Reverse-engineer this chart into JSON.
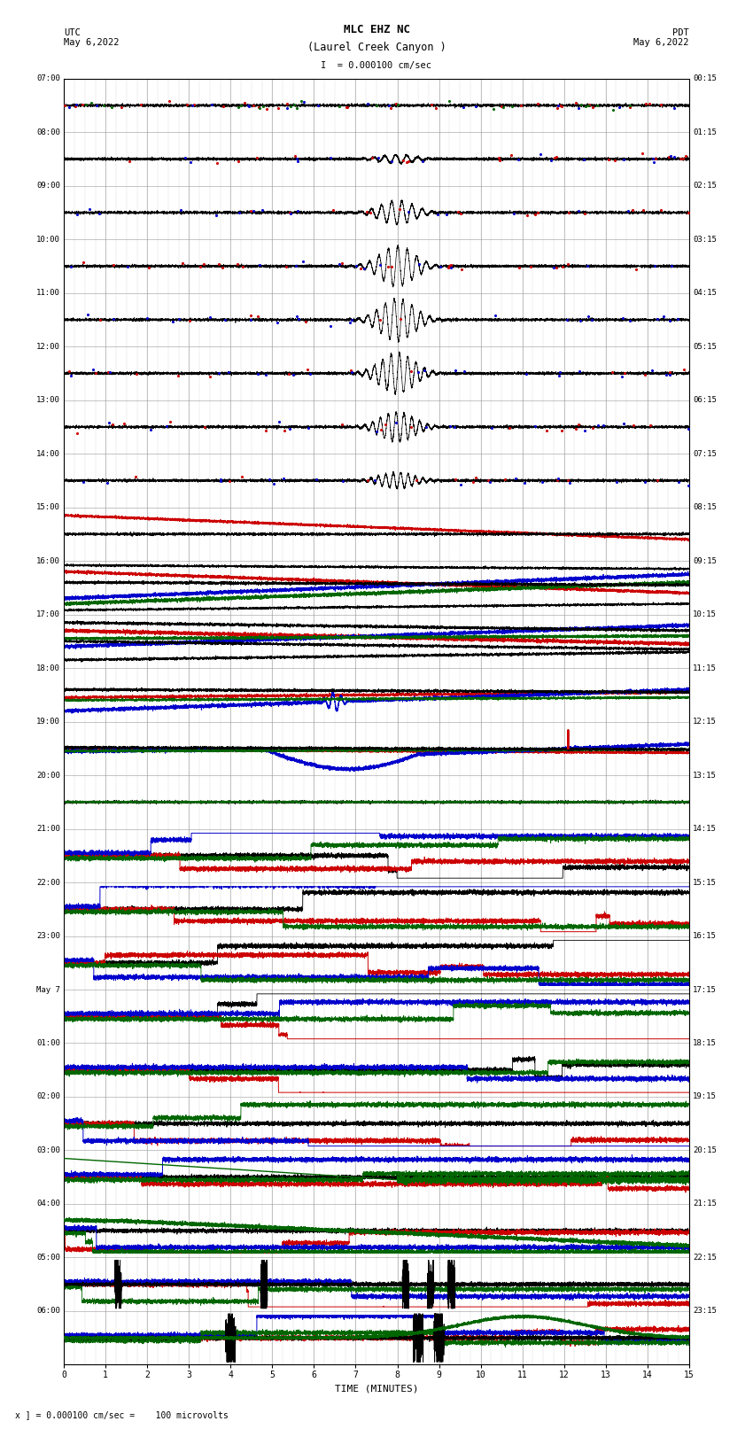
{
  "title_line1": "MLC EHZ NC",
  "title_line2": "(Laurel Creek Canyon )",
  "title_line3": "I  = 0.000100 cm/sec",
  "left_header_line1": "UTC",
  "left_header_line2": "May 6,2022",
  "right_header_line1": "PDT",
  "right_header_line2": "May 6,2022",
  "footer": "x ] = 0.000100 cm/sec =    100 microvolts",
  "xlabel": "TIME (MINUTES)",
  "utc_labels": [
    "07:00",
    "08:00",
    "09:00",
    "10:00",
    "11:00",
    "12:00",
    "13:00",
    "14:00",
    "15:00",
    "16:00",
    "17:00",
    "18:00",
    "19:00",
    "20:00",
    "21:00",
    "22:00",
    "23:00",
    "May 7",
    "01:00",
    "02:00",
    "03:00",
    "04:00",
    "05:00",
    "06:00"
  ],
  "pdt_labels": [
    "00:15",
    "01:15",
    "02:15",
    "03:15",
    "04:15",
    "05:15",
    "06:15",
    "07:15",
    "08:15",
    "09:15",
    "10:15",
    "11:15",
    "12:15",
    "13:15",
    "14:15",
    "15:15",
    "16:15",
    "17:15",
    "18:15",
    "19:15",
    "20:15",
    "21:15",
    "22:15",
    "23:15"
  ],
  "n_rows": 24,
  "time_minutes": 15,
  "background_color": "#ffffff",
  "grid_color": "#999999",
  "text_color": "#000000",
  "colors": {
    "black": "#000000",
    "red": "#cc0000",
    "blue": "#0000cc",
    "green": "#006600"
  },
  "seed": 42
}
